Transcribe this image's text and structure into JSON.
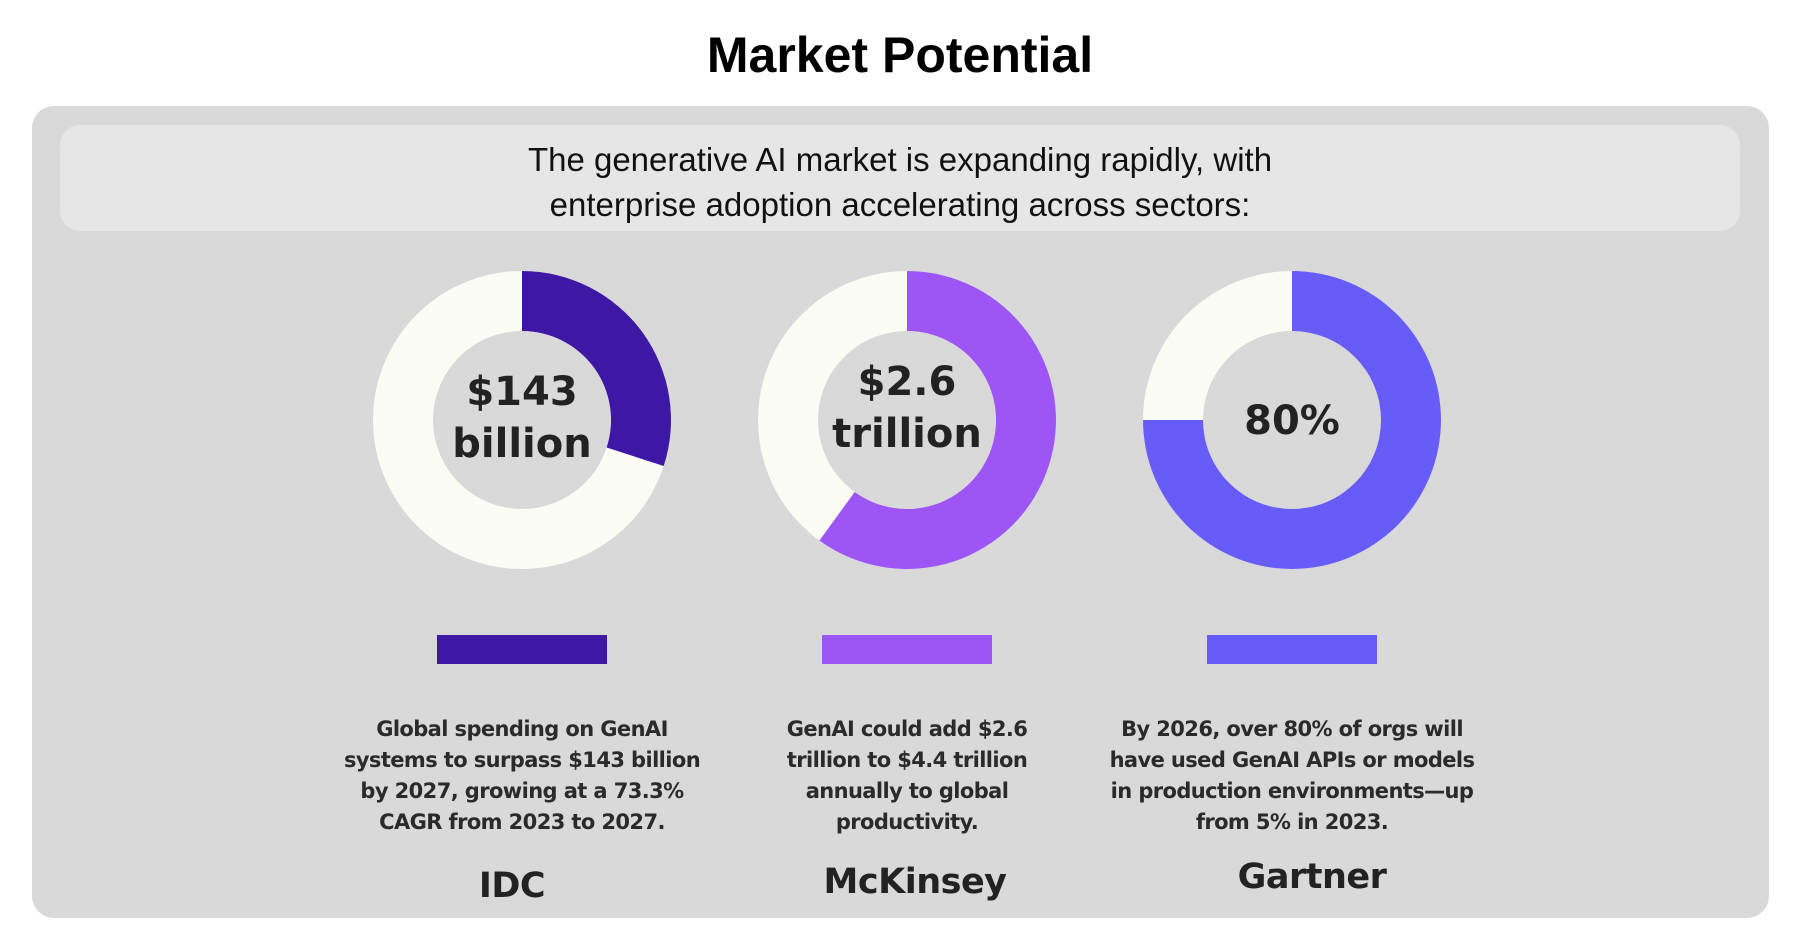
{
  "title": "Market Potential",
  "caption": {
    "line1": "The generative AI market is expanding rapidly, with",
    "line2": "enterprise adoption accelerating across sectors:"
  },
  "chart_data": {
    "type": "donut",
    "track_color": "#fbfdf4",
    "background_color": "#d9d9d9",
    "items": [
      {
        "source": "IDC",
        "center_lines": [
          "$143",
          "billion"
        ],
        "filled_fraction": 0.3,
        "color": "#3f17a5",
        "description": [
          "Global spending on GenAI",
          "systems to surpass $143 billion",
          "by 2027, growing at a 73.3%",
          "CAGR from 2023 to 2027."
        ]
      },
      {
        "source": "McKinsey",
        "center_lines": [
          "$2.6",
          "trillion"
        ],
        "filled_fraction": 0.6,
        "color": "#9d55f5",
        "description": [
          "GenAI could add $2.6",
          "trillion to $4.4 trillion",
          "annually to global",
          "productivity."
        ]
      },
      {
        "source": "Gartner",
        "center_lines": [
          "80%"
        ],
        "filled_fraction": 0.75,
        "color": "#685cf8",
        "description": [
          "By 2026, over 80% of orgs will",
          "have used GenAI APIs or models",
          "in production environments—up",
          "from 5% in 2023."
        ]
      }
    ]
  }
}
